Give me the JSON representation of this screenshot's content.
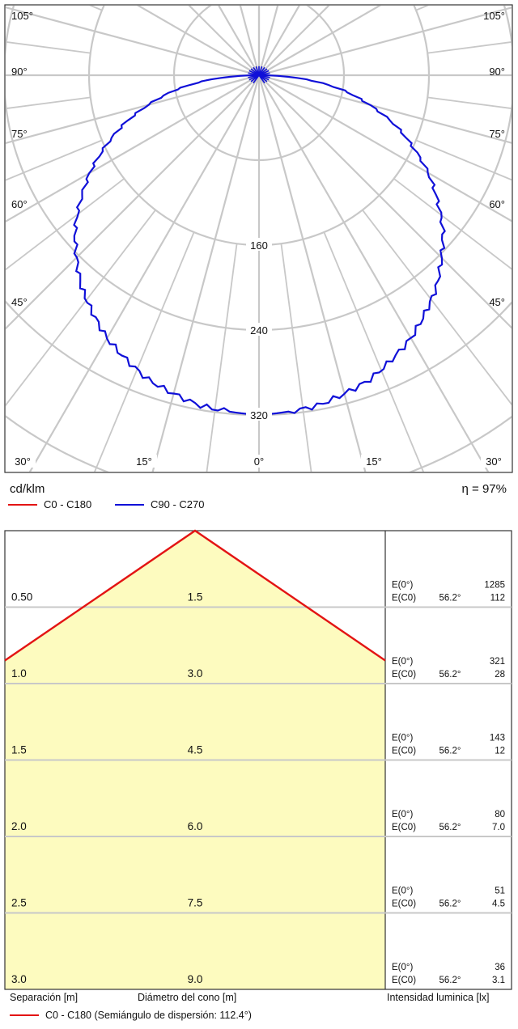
{
  "colors": {
    "c0": "#e31414",
    "c90": "#1010d8",
    "grid": "#c8c8c8",
    "cone_fill": "#fdfbbf"
  },
  "chart_data": [
    {
      "type": "polar",
      "unit_label": "cd/klm",
      "efficiency": "η = 97%",
      "angle_labels": [
        "105°",
        "90°",
        "75°",
        "60°",
        "45°",
        "30°",
        "15°",
        "0°",
        "15°",
        "30°",
        "45°",
        "60°",
        "75°",
        "90°",
        "105°"
      ],
      "radial_labels": [
        "160",
        "240",
        "320"
      ],
      "legend": [
        {
          "name": "C0 - C180",
          "color": "#e31414"
        },
        {
          "name": "C90 - C270",
          "color": "#1010d8"
        }
      ],
      "series": [
        {
          "name": "C90 - C270",
          "angles": [
            0,
            10,
            20,
            30,
            40,
            50,
            60,
            70,
            80,
            85,
            90
          ],
          "values": [
            320,
            316,
            305,
            286,
            260,
            226,
            184,
            136,
            80,
            45,
            0
          ]
        }
      ]
    },
    {
      "type": "table",
      "left_axis_label": "Separación [m]",
      "center_axis_label": "Diámetro del cono [m]",
      "right_axis_label": "Intensidad luminica [lx]",
      "legend": "C0 - C180 (Semiángulo de dispersión: 112.4°)",
      "half_angle": 112.4,
      "rows": [
        {
          "separation": "0.50",
          "diameter": "1.5",
          "e0_label": "E(0°)",
          "e0": "1285",
          "ec0_label": "E(C0)",
          "angle": "56.2°",
          "ec0": "112"
        },
        {
          "separation": "1.0",
          "diameter": "3.0",
          "e0_label": "E(0°)",
          "e0": "321",
          "ec0_label": "E(C0)",
          "angle": "56.2°",
          "ec0": "28"
        },
        {
          "separation": "1.5",
          "diameter": "4.5",
          "e0_label": "E(0°)",
          "e0": "143",
          "ec0_label": "E(C0)",
          "angle": "56.2°",
          "ec0": "12"
        },
        {
          "separation": "2.0",
          "diameter": "6.0",
          "e0_label": "E(0°)",
          "e0": "80",
          "ec0_label": "E(C0)",
          "angle": "56.2°",
          "ec0": "7.0"
        },
        {
          "separation": "2.5",
          "diameter": "7.5",
          "e0_label": "E(0°)",
          "e0": "51",
          "ec0_label": "E(C0)",
          "angle": "56.2°",
          "ec0": "4.5"
        },
        {
          "separation": "3.0",
          "diameter": "9.0",
          "e0_label": "E(0°)",
          "e0": "36",
          "ec0_label": "E(C0)",
          "angle": "56.2°",
          "ec0": "3.1"
        }
      ]
    }
  ]
}
